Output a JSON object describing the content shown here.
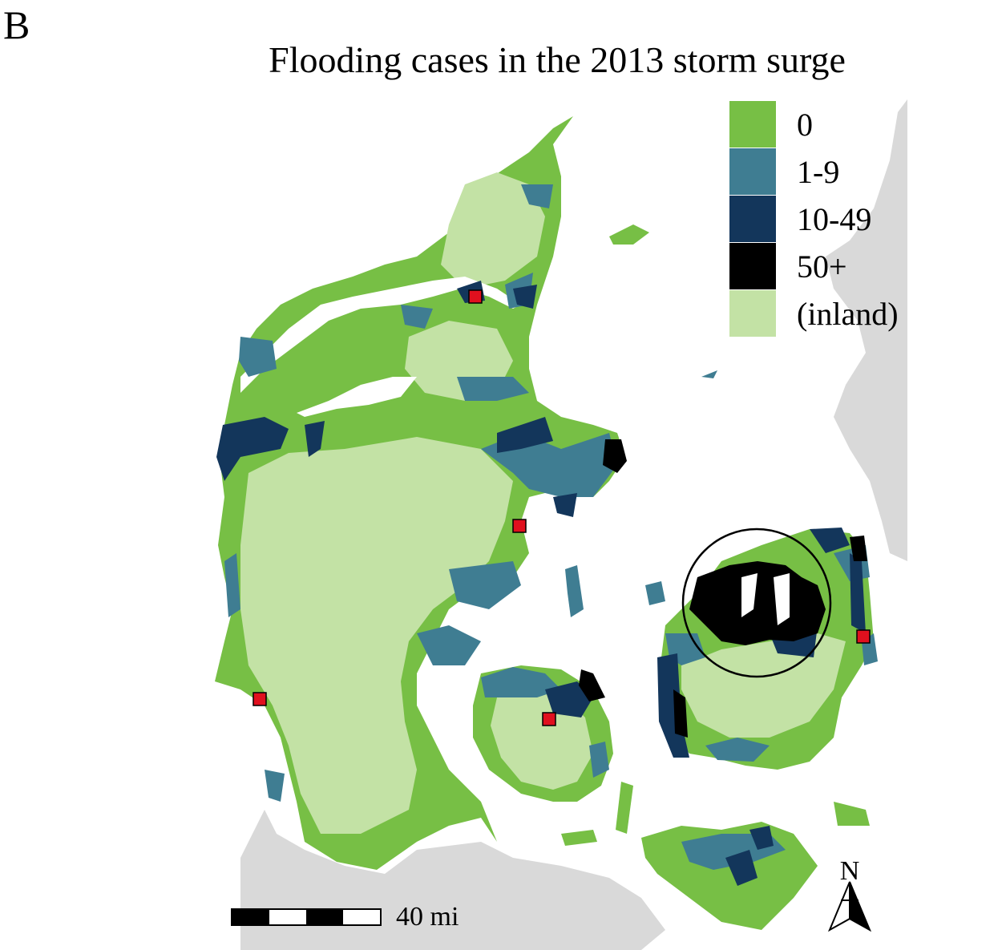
{
  "panel_label": "B",
  "title": "Flooding cases in the 2013 storm surge",
  "legend": [
    {
      "label": "0",
      "color": "#77bf45"
    },
    {
      "label": "1-9",
      "color": "#3f7d92"
    },
    {
      "label": "10-49",
      "color": "#13365b"
    },
    {
      "label": "50+",
      "color": "#000000"
    },
    {
      "label": "(inland)",
      "color": "#c3e2a5"
    }
  ],
  "scalebar": {
    "label": "40 mi"
  },
  "north_arrow": {
    "label": "N",
    "icon": "north-arrow-icon"
  },
  "colors": {
    "background_land": "#d9d9d9",
    "sea": "#ffffff",
    "city_marker": "#e0101e",
    "study_area_circle": "#000000"
  }
}
